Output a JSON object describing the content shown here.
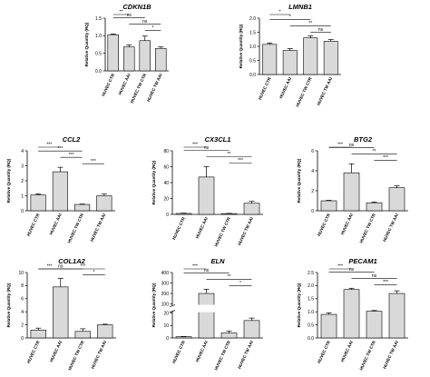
{
  "figure": {
    "panels": [
      {
        "id": "cdkn1b",
        "title": "CDKN1B"
      },
      {
        "id": "lmnb1",
        "title": "LMNB1"
      },
      {
        "id": "ccl2",
        "title": "CCL2"
      },
      {
        "id": "cx3cl1",
        "title": "CX3CL1"
      },
      {
        "id": "btg2",
        "title": "BTG2"
      },
      {
        "id": "col1a2",
        "title": "COL1A2"
      },
      {
        "id": "eln",
        "title": "ELN"
      },
      {
        "id": "pecam1",
        "title": "PECAM1"
      }
    ]
  },
  "chart_data": [
    {
      "type": "bar",
      "title": "CDKN1B",
      "ylabel": "Relative Quantity (RQ)",
      "categories": [
        "HUVEC CTR",
        "HUVEC AAI",
        "HUVEC TW CTR",
        "HUVEC TW AAI"
      ],
      "values": [
        1.03,
        0.68,
        0.86,
        0.64
      ],
      "errors": [
        0.02,
        0.06,
        0.13,
        0.04
      ],
      "ylim": [
        0,
        1.5
      ],
      "yticks": [
        "0.0",
        "0.5",
        "1.0",
        "1.5"
      ],
      "significance": [
        {
          "from": 0,
          "to": 1,
          "label": "**"
        },
        {
          "from": 0,
          "to": 2,
          "label": "ns"
        },
        {
          "from": 1,
          "to": 3,
          "label": "ns"
        },
        {
          "from": 2,
          "to": 3,
          "label": "*"
        }
      ]
    },
    {
      "type": "bar",
      "title": "LMNB1",
      "ylabel": "Relative Quantity (RQ)",
      "categories": [
        "HUVEC CTR",
        "HUVEC AAI",
        "HUVEC TW CTR",
        "HUVEC TW AAI"
      ],
      "values": [
        1.07,
        0.85,
        1.3,
        1.18
      ],
      "errors": [
        0.05,
        0.07,
        0.07,
        0.06
      ],
      "ylim": [
        0,
        2.0
      ],
      "yticks": [
        "0.0",
        "0.5",
        "1.0",
        "1.5",
        "2.0"
      ],
      "significance": [
        {
          "from": 0,
          "to": 1,
          "label": "*"
        },
        {
          "from": 0,
          "to": 2,
          "label": "*"
        },
        {
          "from": 1,
          "to": 3,
          "label": "**"
        },
        {
          "from": 2,
          "to": 3,
          "label": "ns"
        }
      ]
    },
    {
      "type": "bar",
      "title": "CCL2",
      "ylabel": "Relative Quantity (RQ)",
      "categories": [
        "HUVEC CTR",
        "HUVEC AAI",
        "HUVEC TW CTR",
        "HUVEC TW AAI"
      ],
      "values": [
        1.05,
        2.6,
        0.42,
        1.0
      ],
      "errors": [
        0.08,
        0.3,
        0.03,
        0.12
      ],
      "ylim": [
        0,
        4
      ],
      "yticks": [
        "0",
        "1",
        "2",
        "3",
        "4"
      ],
      "significance": [
        {
          "from": 0,
          "to": 1,
          "label": "***"
        },
        {
          "from": 0,
          "to": 2,
          "label": "***"
        },
        {
          "from": 1,
          "to": 2,
          "label": "***"
        },
        {
          "from": 2,
          "to": 3,
          "label": "***"
        }
      ]
    },
    {
      "type": "bar",
      "title": "CX3CL1",
      "ylabel": "Relative Quantity (RQ)",
      "categories": [
        "HUVEC CTR",
        "HUVEC AAI",
        "HUVEC TW CTR",
        "HUVEC TW AAI"
      ],
      "values": [
        1.2,
        47,
        1.0,
        14
      ],
      "errors": [
        0.4,
        13,
        0.3,
        2.5
      ],
      "ylim": [
        0,
        80
      ],
      "yticks": [
        "0",
        "20",
        "40",
        "60",
        "80"
      ],
      "significance": [
        {
          "from": 0,
          "to": 1,
          "label": "***"
        },
        {
          "from": 0,
          "to": 2,
          "label": "ns"
        },
        {
          "from": 1,
          "to": 3,
          "label": "**"
        },
        {
          "from": 2,
          "to": 3,
          "label": "***"
        }
      ]
    },
    {
      "type": "bar",
      "title": "BTG2",
      "ylabel": "Relative Quantity (RQ)",
      "categories": [
        "HUVEC CTR",
        "HUVEC AAI",
        "HUVEC TW CTR",
        "HUVEC TW AAI"
      ],
      "values": [
        1.0,
        3.8,
        0.8,
        2.3
      ],
      "errors": [
        0.05,
        0.9,
        0.08,
        0.2
      ],
      "ylim": [
        0,
        6
      ],
      "yticks": [
        "0",
        "2",
        "4",
        "6"
      ],
      "significance": [
        {
          "from": 0,
          "to": 1,
          "label": "***"
        },
        {
          "from": 0,
          "to": 2,
          "label": "ns"
        },
        {
          "from": 1,
          "to": 3,
          "label": "**"
        },
        {
          "from": 2,
          "to": 3,
          "label": "***"
        }
      ]
    },
    {
      "type": "bar",
      "title": "COL1A2",
      "ylabel": "Relative Quantity (RQ)",
      "categories": [
        "HUVEC CTR",
        "HUVEC AAI",
        "HUVEC TW CTR",
        "HUVEC TW AAI"
      ],
      "values": [
        1.2,
        7.8,
        1.0,
        2.0
      ],
      "errors": [
        0.3,
        1.3,
        0.4,
        0.1
      ],
      "ylim": [
        0,
        10
      ],
      "yticks": [
        "0",
        "2",
        "4",
        "6",
        "8",
        "10"
      ],
      "significance": [
        {
          "from": 0,
          "to": 1,
          "label": "***"
        },
        {
          "from": 0,
          "to": 2,
          "label": "ns"
        },
        {
          "from": 1,
          "to": 3,
          "label": "***"
        },
        {
          "from": 2,
          "to": 3,
          "label": "*"
        }
      ]
    },
    {
      "type": "bar",
      "title": "ELN",
      "ylabel": "Relative Quantity (RQ)",
      "categories": [
        "HUVEC CTR",
        "HUVEC AAI",
        "HUVEC TW CTR",
        "HUVEC TW AAI"
      ],
      "values": [
        1,
        200,
        4,
        14
      ],
      "errors": [
        0.2,
        40,
        1.5,
        2
      ],
      "axis_break": true,
      "ylim": [
        0,
        400
      ],
      "yticks": [
        "0",
        "10",
        "20",
        "100",
        "200",
        "300",
        "400"
      ],
      "significance": [
        {
          "from": 0,
          "to": 1,
          "label": "***"
        },
        {
          "from": 0,
          "to": 2,
          "label": "ns"
        },
        {
          "from": 1,
          "to": 3,
          "label": "**"
        },
        {
          "from": 2,
          "to": 3,
          "label": "*"
        }
      ]
    },
    {
      "type": "bar",
      "title": "PECAM1",
      "ylabel": "Relative Quantity (RQ)",
      "categories": [
        "HUVEC CTR",
        "HUVEC AAI",
        "HUVEC TW CTR",
        "HUVEC TW AAI"
      ],
      "values": [
        0.9,
        1.85,
        1.02,
        1.7
      ],
      "errors": [
        0.06,
        0.05,
        0.03,
        0.1
      ],
      "ylim": [
        0,
        2.5
      ],
      "yticks": [
        "0.0",
        "0.5",
        "1.0",
        "1.5",
        "2.0",
        "2.5"
      ],
      "significance": [
        {
          "from": 0,
          "to": 1,
          "label": "***"
        },
        {
          "from": 0,
          "to": 2,
          "label": "ns"
        },
        {
          "from": 1,
          "to": 3,
          "label": "ns"
        },
        {
          "from": 2,
          "to": 3,
          "label": "***"
        }
      ]
    }
  ]
}
